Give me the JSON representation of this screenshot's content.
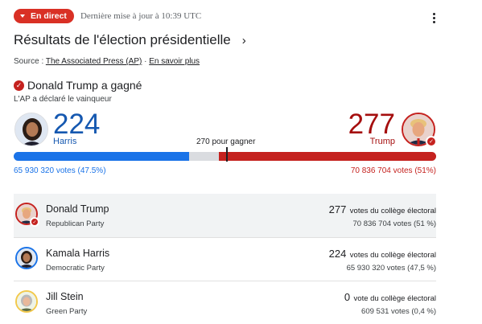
{
  "header": {
    "live_label": "En direct",
    "updated": "Dernière mise à jour à 10:39 UTC",
    "title": "Résultats de l'élection présidentielle",
    "source_prefix": "Source : ",
    "source_link": "The Associated Press (AP)",
    "source_sep": " · ",
    "learn_more": "En savoir plus"
  },
  "winner": {
    "headline": "Donald Trump a gagné",
    "declared": "L'AP a déclaré le vainqueur"
  },
  "summary": {
    "harris": {
      "ev": "224",
      "name": "Harris",
      "popular": "65 930 320 votes (47.5%)"
    },
    "trump": {
      "ev": "277",
      "name": "Trump",
      "popular": "70 836 704 votes (51%)"
    },
    "threshold_label": "270 pour gagner",
    "bar": {
      "harris_fraction": 0.416,
      "trump_fraction": 0.515,
      "threshold_fraction": 0.502
    }
  },
  "candidates": [
    {
      "name": "Donald Trump",
      "party": "Republican Party",
      "ev": "277",
      "ev_label": "votes du collège électoral",
      "popular": "70 836 704 votes (51 %)",
      "winner": true
    },
    {
      "name": "Kamala Harris",
      "party": "Democratic Party",
      "ev": "224",
      "ev_label": "votes du collège électoral",
      "popular": "65 930 320 votes (47,5 %)",
      "winner": false
    },
    {
      "name": "Jill Stein",
      "party": "Green Party",
      "ev": "0",
      "ev_label": "vote du collège électoral",
      "popular": "609 531 votes (0,4 %)",
      "winner": false
    }
  ],
  "colors": {
    "live": "#d93025",
    "democrat": "#1a73e8",
    "republican": "#c5221f",
    "threshold_gray": "#dadce0"
  },
  "icons": {
    "live": "caret-down-icon",
    "more": "more-vert-icon",
    "title_chevron": "chevron-right-icon",
    "winner": "checkmark-circle-icon"
  }
}
